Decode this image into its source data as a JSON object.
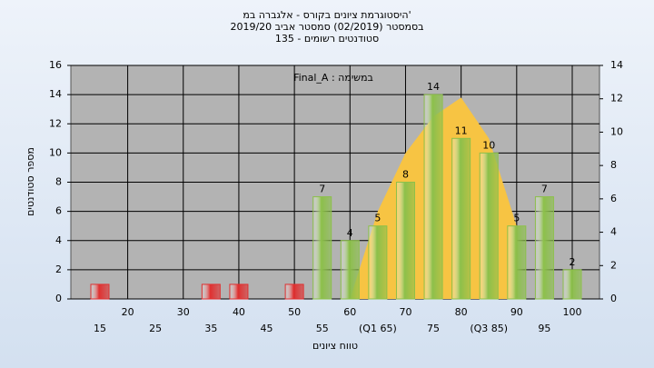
{
  "chart_data": {
    "type": "bar",
    "title": [
      "'היסטוגרמת ציונים בקורס - אלגברה במ",
      "בסמסטר  (02/2019)  סמסטר אביב 2019/20",
      "סטודנטים רשומים - 135"
    ],
    "annotation": "במשימה : Final_A",
    "x_label": "טווח ציונים",
    "y_label": "מספר סטודנטים",
    "categories": [
      "15",
      "20",
      "25",
      "30",
      "35",
      "40",
      "45",
      "50",
      "55",
      "60",
      "(Q1 65)",
      "70",
      "75",
      "80",
      "(Q3 85)",
      "90",
      "95",
      "100"
    ],
    "values": [
      1,
      0,
      0,
      0,
      1,
      1,
      0,
      1,
      7,
      4,
      5,
      8,
      14,
      11,
      10,
      5,
      7,
      2
    ],
    "value_labels": [
      null,
      null,
      null,
      null,
      null,
      null,
      null,
      null,
      "7",
      "4",
      "5",
      "8",
      "14",
      "11",
      "10",
      "5",
      "7",
      "2"
    ],
    "colors": [
      "#e03030",
      "#8cc04a",
      "#8cc04a",
      "#8cc04a",
      "#e03030",
      "#e03030",
      "#8cc04a",
      "#e03030",
      "#8cc04a",
      "#8cc04a",
      "#8cc04a",
      "#8cc04a",
      "#8cc04a",
      "#8cc04a",
      "#8cc04a",
      "#8cc04a",
      "#8cc04a",
      "#8cc04a"
    ],
    "curve": {
      "color": "#f7c443",
      "values": [
        null,
        null,
        null,
        null,
        null,
        null,
        null,
        null,
        null,
        0,
        6,
        10,
        12.5,
        13.8,
        11,
        5,
        null,
        null
      ]
    },
    "ylim": [
      0,
      16
    ],
    "yticks": [
      0,
      2,
      4,
      6,
      8,
      10,
      12,
      14,
      16
    ],
    "y2lim": [
      0,
      14
    ],
    "y2ticks": [
      0,
      2,
      4,
      6,
      8,
      10,
      12,
      14
    ],
    "grid": true
  }
}
